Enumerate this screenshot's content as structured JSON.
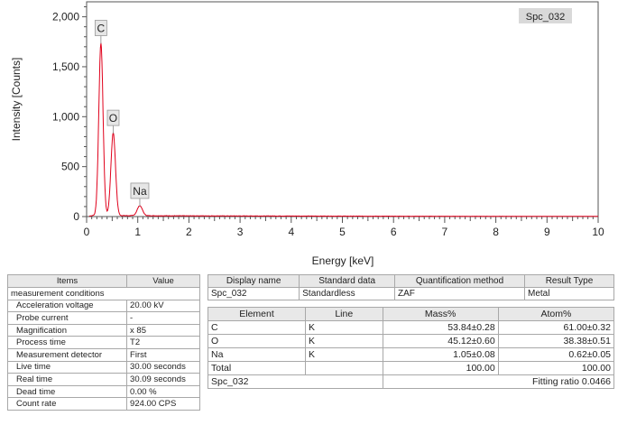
{
  "chart_data": {
    "type": "line",
    "xlabel": "Energy [keV]",
    "ylabel": "Intensity [Counts]",
    "xlim": [
      0,
      10
    ],
    "ylim": [
      0,
      2150
    ],
    "xticks": [
      0,
      1,
      2,
      3,
      4,
      5,
      6,
      7,
      8,
      9,
      10
    ],
    "yticks": [
      0,
      500,
      1000,
      1500,
      2000
    ],
    "ytick_labels": [
      "0",
      "500",
      "1,000",
      "1,500",
      "2,000"
    ],
    "legend": "Spc_032",
    "line_color": "#e0001b",
    "peaks": [
      {
        "label": "C",
        "energy": 0.28,
        "counts": 1730
      },
      {
        "label": "O",
        "energy": 0.52,
        "counts": 830
      },
      {
        "label": "Na",
        "energy": 1.04,
        "counts": 100
      }
    ],
    "background_counts": 10
  },
  "conditions": {
    "headers": [
      "Items",
      "Value"
    ],
    "section": "measurement conditions",
    "rows": [
      [
        "Acceleration voltage",
        "20.00 kV"
      ],
      [
        "Probe current",
        "-"
      ],
      [
        "Magnification",
        "x 85"
      ],
      [
        "Process time",
        "T2"
      ],
      [
        "Measurement detector",
        "First"
      ],
      [
        "Live time",
        "30.00 seconds"
      ],
      [
        "Real time",
        "30.09 seconds"
      ],
      [
        "Dead time",
        "0.00 %"
      ],
      [
        "Count rate",
        "924.00 CPS"
      ]
    ]
  },
  "display": {
    "headers": [
      "Display name",
      "Standard data",
      "Quantification method",
      "Result Type"
    ],
    "row": [
      "Spc_032",
      "Standardless",
      "ZAF",
      "Metal"
    ]
  },
  "results": {
    "headers": [
      "Element",
      "Line",
      "Mass%",
      "Atom%"
    ],
    "rows": [
      [
        "C",
        "K",
        "53.84±0.28",
        "61.00±0.32"
      ],
      [
        "O",
        "K",
        "45.12±0.60",
        "38.38±0.51"
      ],
      [
        "Na",
        "K",
        "1.05±0.08",
        "0.62±0.05"
      ],
      [
        "Total",
        "",
        "100.00",
        "100.00"
      ]
    ],
    "footer_name": "Spc_032",
    "fitting_ratio": "Fitting ratio 0.0466"
  }
}
